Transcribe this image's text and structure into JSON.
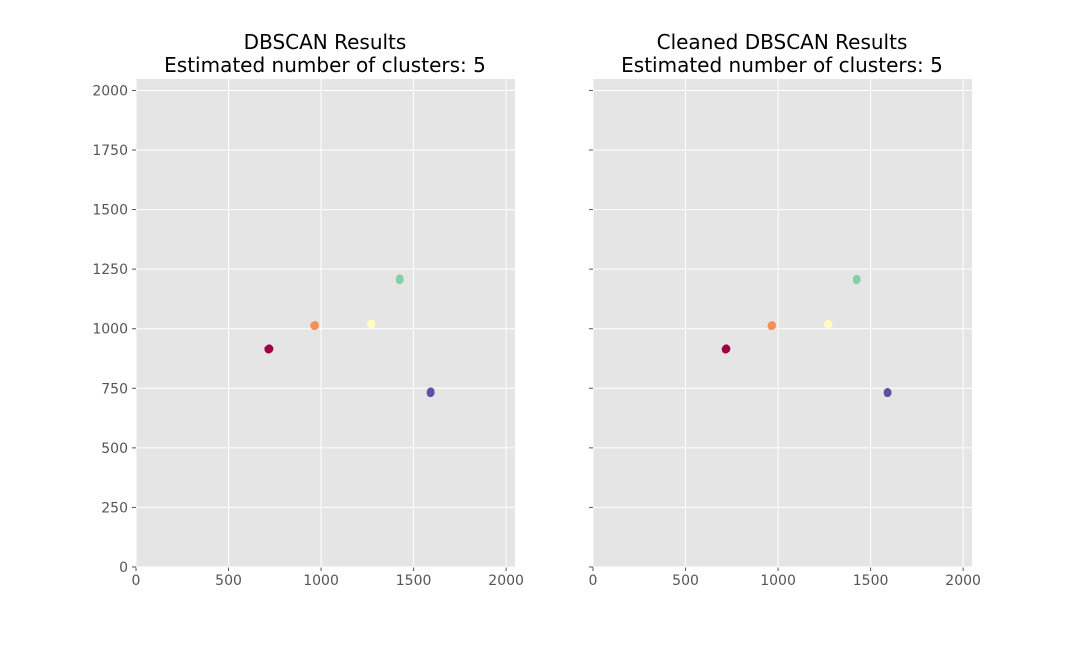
{
  "chart_data": [
    {
      "type": "scatter",
      "title": "DBSCAN Results",
      "subtitle": "Estimated number of clusters: 5",
      "xlabel": "",
      "ylabel": "",
      "xlim": [
        0,
        2048
      ],
      "ylim": [
        0,
        2048
      ],
      "xticks": [
        0,
        500,
        1000,
        1500,
        2000
      ],
      "yticks": [
        0,
        250,
        500,
        750,
        1000,
        1250,
        1500,
        1750,
        2000
      ],
      "grid": true,
      "show_ytick_labels": true,
      "series": [
        {
          "color": "#9e0142",
          "points": [
            [
              715,
              914
            ],
            [
              718,
              917
            ],
            [
              721,
              913
            ],
            [
              716,
              911
            ],
            [
              720,
              919
            ],
            [
              713,
              915
            ],
            [
              723,
              916
            ]
          ]
        },
        {
          "color": "#f98e52",
          "points": [
            [
              963,
              1013
            ],
            [
              966,
              1016
            ],
            [
              969,
              1011
            ],
            [
              964,
              1009
            ],
            [
              968,
              1017
            ],
            [
              961,
              1014
            ]
          ]
        },
        {
          "color": "#ffffbe",
          "points": [
            [
              1268,
              1019
            ],
            [
              1271,
              1022
            ],
            [
              1274,
              1018
            ],
            [
              1270,
              1016
            ],
            [
              1273,
              1023
            ]
          ]
        },
        {
          "color": "#86cfa5",
          "points": [
            [
              1423,
              1207
            ],
            [
              1425,
              1211
            ],
            [
              1427,
              1205
            ],
            [
              1424,
              1202
            ],
            [
              1426,
              1213
            ]
          ]
        },
        {
          "color": "#5e4fa2",
          "points": [
            [
              1590,
              733
            ],
            [
              1592,
              736
            ],
            [
              1594,
              731
            ],
            [
              1591,
              728
            ],
            [
              1593,
              738
            ]
          ]
        }
      ]
    },
    {
      "type": "scatter",
      "title": "Cleaned DBSCAN Results",
      "subtitle": "Estimated number of clusters: 5",
      "xlabel": "",
      "ylabel": "",
      "xlim": [
        0,
        2048
      ],
      "ylim": [
        0,
        2048
      ],
      "xticks": [
        0,
        500,
        1000,
        1500,
        2000
      ],
      "yticks": [
        0,
        250,
        500,
        750,
        1000,
        1250,
        1500,
        1750,
        2000
      ],
      "grid": true,
      "show_ytick_labels": false,
      "series": [
        {
          "color": "#9e0142",
          "points": [
            [
              715,
              914
            ],
            [
              718,
              917
            ],
            [
              721,
              913
            ],
            [
              716,
              911
            ],
            [
              720,
              919
            ],
            [
              723,
              916
            ]
          ]
        },
        {
          "color": "#f98e52",
          "points": [
            [
              963,
              1013
            ],
            [
              966,
              1016
            ],
            [
              969,
              1011
            ],
            [
              964,
              1009
            ],
            [
              968,
              1017
            ]
          ]
        },
        {
          "color": "#ffffbe",
          "points": [
            [
              1268,
              1019
            ],
            [
              1271,
              1022
            ],
            [
              1274,
              1018
            ],
            [
              1270,
              1016
            ]
          ]
        },
        {
          "color": "#86cfa5",
          "points": [
            [
              1423,
              1207
            ],
            [
              1425,
              1211
            ],
            [
              1427,
              1205
            ],
            [
              1424,
              1202
            ]
          ]
        },
        {
          "color": "#5e4fa2",
          "points": [
            [
              1590,
              733
            ],
            [
              1592,
              736
            ],
            [
              1594,
              731
            ],
            [
              1591,
              728
            ]
          ]
        }
      ]
    }
  ]
}
